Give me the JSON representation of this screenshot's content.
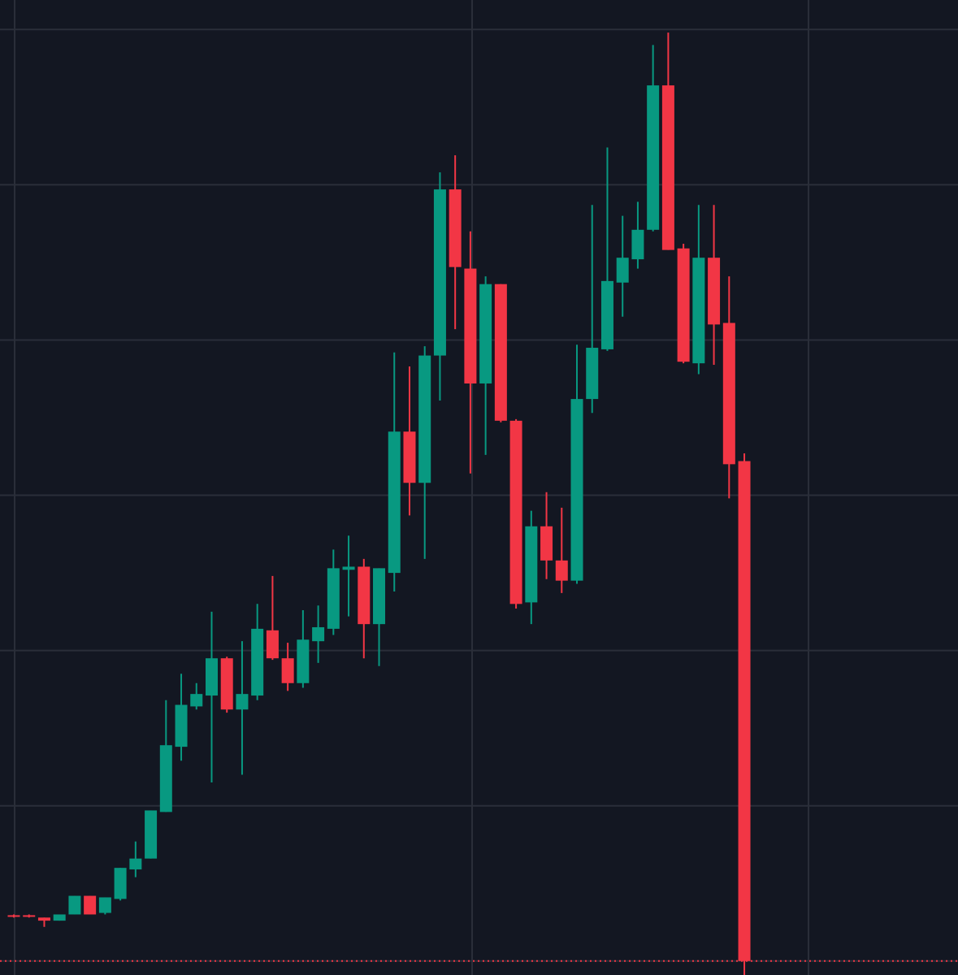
{
  "chart_data": {
    "type": "candlestick",
    "categories": [
      null,
      null,
      null,
      null,
      null,
      null,
      null,
      null,
      null,
      null,
      null,
      null,
      null,
      null,
      null,
      null,
      null,
      null,
      null,
      null,
      null,
      null,
      null,
      null,
      null,
      null,
      null,
      null,
      null,
      null,
      null,
      null,
      null,
      null,
      null,
      null,
      null,
      null,
      null,
      null,
      null,
      null,
      null,
      null,
      null,
      null,
      null,
      null,
      null
    ],
    "open": [
      2.95,
      2.95,
      2.8,
      2.6,
      3.0,
      4.2,
      3.1,
      4.0,
      5.9,
      6.6,
      9.6,
      13.8,
      16.4,
      17.1,
      19.5,
      16.2,
      17.1,
      21.3,
      19.5,
      17.9,
      20.6,
      21.4,
      25.2,
      25.4,
      21.7,
      25.0,
      34.1,
      30.8,
      39.0,
      49.7,
      44.6,
      37.2,
      43.6,
      34.8,
      23.1,
      28.0,
      25.8,
      24.5,
      36.2,
      39.4,
      43.7,
      45.2,
      47.1,
      56.4,
      45.9,
      38.5,
      45.3,
      41.1,
      32.2
    ],
    "high": [
      3.0,
      3.0,
      2.8,
      3.0,
      4.2,
      4.2,
      4.1,
      6.0,
      7.7,
      9.7,
      16.8,
      18.5,
      17.9,
      22.5,
      19.6,
      20.6,
      23.0,
      24.8,
      20.5,
      22.6,
      22.9,
      26.5,
      27.4,
      25.9,
      25.3,
      39.2,
      38.3,
      39.6,
      50.8,
      51.9,
      47.0,
      44.1,
      43.6,
      34.9,
      29.0,
      30.2,
      29.2,
      39.7,
      48.7,
      52.4,
      48.0,
      48.9,
      59.0,
      59.8,
      46.2,
      48.7,
      48.7,
      44.1,
      32.7
    ],
    "low": [
      2.8,
      2.8,
      2.2,
      2.6,
      3.0,
      3.0,
      3.0,
      3.9,
      5.4,
      6.6,
      9.6,
      12.9,
      16.2,
      11.5,
      16.0,
      12.0,
      16.8,
      19.4,
      17.4,
      17.6,
      19.2,
      21.0,
      22.2,
      19.5,
      19.0,
      23.8,
      28.7,
      25.9,
      36.1,
      40.7,
      31.4,
      32.6,
      34.7,
      22.7,
      21.7,
      24.6,
      23.7,
      24.3,
      35.3,
      39.3,
      41.5,
      44.6,
      47.0,
      45.8,
      38.5,
      37.8,
      38.4,
      29.8,
      -1
    ],
    "close": [
      2.9,
      2.9,
      2.6,
      3.0,
      4.2,
      3.0,
      4.1,
      6.0,
      6.6,
      9.7,
      13.9,
      16.5,
      17.2,
      19.5,
      16.2,
      17.2,
      21.4,
      19.5,
      17.9,
      20.7,
      21.5,
      25.3,
      25.4,
      21.7,
      25.3,
      34.1,
      30.8,
      39.0,
      49.7,
      44.7,
      37.2,
      43.6,
      34.8,
      23.0,
      28.0,
      25.8,
      24.5,
      36.2,
      39.5,
      43.8,
      45.3,
      47.1,
      56.4,
      45.8,
      38.6,
      45.3,
      41.0,
      32.0,
      0
    ],
    "up_color": "#089981",
    "down_color": "#f23645",
    "ylim": [
      -0.9,
      61.9
    ],
    "yticks": [
      0,
      10,
      20,
      30,
      40,
      50,
      60
    ],
    "grid": true
  }
}
